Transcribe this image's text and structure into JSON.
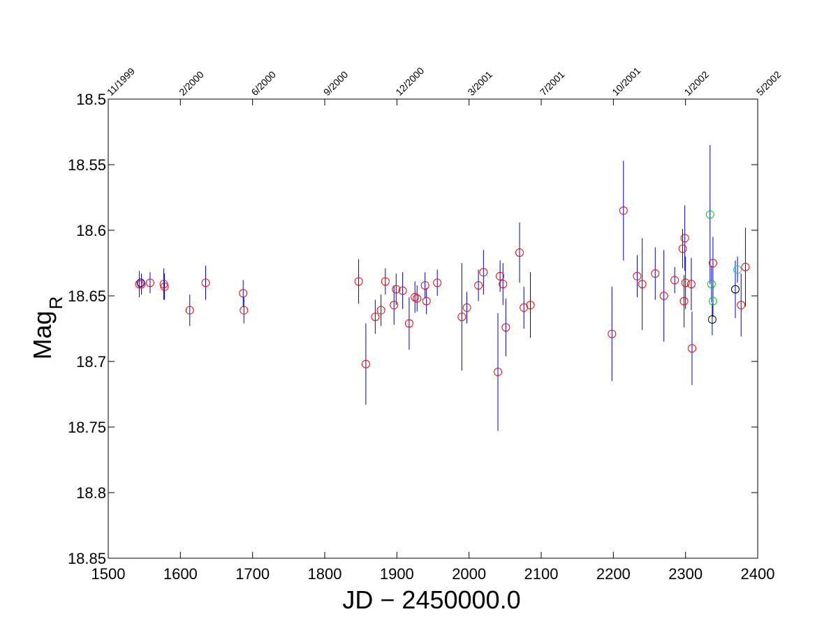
{
  "chart_data": {
    "type": "scatter",
    "title": "",
    "xlabel": "JD − 2450000.0",
    "ylabel": {
      "main": "Mag",
      "subscript": "R"
    },
    "xlim": [
      1500,
      2400
    ],
    "ylim": [
      18.5,
      18.85
    ],
    "y_inverted": true,
    "grid": false,
    "x_ticks": [
      1500,
      1600,
      1700,
      1800,
      1900,
      2000,
      2100,
      2200,
      2300,
      2400
    ],
    "x_tick_labels": [
      "1500",
      "1600",
      "1700",
      "1800",
      "1900",
      "2000",
      "2100",
      "2200",
      "2300",
      "2400"
    ],
    "y_ticks": [
      18.5,
      18.55,
      18.6,
      18.65,
      18.7,
      18.75,
      18.8,
      18.85
    ],
    "y_tick_labels": [
      "18.5",
      "18.55",
      "18.6",
      "18.65",
      "18.7",
      "18.75",
      "18.8",
      "18.85"
    ],
    "top_date_axis": [
      {
        "x": 1500,
        "label": "11/1999"
      },
      {
        "x": 1600,
        "label": "2/2000"
      },
      {
        "x": 1700,
        "label": "6/2000"
      },
      {
        "x": 1800,
        "label": "9/2000"
      },
      {
        "x": 1900,
        "label": "12/2000"
      },
      {
        "x": 2000,
        "label": "3/2001"
      },
      {
        "x": 2100,
        "label": "7/2001"
      },
      {
        "x": 2200,
        "label": "10/2001"
      },
      {
        "x": 2300,
        "label": "1/2002"
      },
      {
        "x": 2400,
        "label": "5/2002"
      }
    ],
    "errorbar_color": "#0000cc",
    "series": [
      {
        "color": "#ff0000",
        "points": [
          [
            1543,
            18.641,
            0.01
          ],
          [
            1546,
            18.641,
            0.008
          ],
          [
            1558,
            18.64,
            0.008
          ],
          [
            1577,
            18.641,
            0.012
          ],
          [
            1578,
            18.643,
            0.01
          ],
          [
            1613,
            18.661,
            0.012
          ],
          [
            1635,
            18.64,
            0.013
          ],
          [
            1687,
            18.648,
            0.01
          ],
          [
            1688,
            18.661,
            0.01
          ],
          [
            1847,
            18.639,
            0.017
          ],
          [
            1857,
            18.702,
            0.031
          ],
          [
            1870,
            18.666,
            0.013
          ],
          [
            1878,
            18.661,
            0.012
          ],
          [
            1884,
            18.639,
            0.01
          ],
          [
            1896,
            18.657,
            0.015
          ],
          [
            1899,
            18.645,
            0.012
          ],
          [
            1908,
            18.646,
            0.014
          ],
          [
            1917,
            18.671,
            0.02
          ],
          [
            1925,
            18.651,
            0.012
          ],
          [
            1928,
            18.652,
            0.01
          ],
          [
            1939,
            18.642,
            0.01
          ],
          [
            1941,
            18.654,
            0.01
          ],
          [
            1956,
            18.64,
            0.01
          ],
          [
            1990,
            18.666,
            0.041
          ],
          [
            1997,
            18.659,
            0.012
          ],
          [
            2013,
            18.642,
            0.012
          ],
          [
            2020,
            18.632,
            0.017
          ],
          [
            2040,
            18.708,
            0.045
          ],
          [
            2043,
            18.635,
            0.012
          ],
          [
            2047,
            18.641,
            0.016
          ],
          [
            2051,
            18.674,
            0.022
          ],
          [
            2070,
            18.617,
            0.023
          ],
          [
            2076,
            18.659,
            0.016
          ],
          [
            2085,
            18.657,
            0.025
          ],
          [
            2198,
            18.679,
            0.036
          ],
          [
            2214,
            18.585,
            0.038
          ],
          [
            2233,
            18.635,
            0.016
          ],
          [
            2240,
            18.641,
            0.035
          ],
          [
            2258,
            18.633,
            0.02
          ],
          [
            2270,
            18.65,
            0.035
          ],
          [
            2285,
            18.638,
            0.01
          ],
          [
            2296,
            18.614,
            0.015
          ],
          [
            2298,
            18.654,
            0.02
          ],
          [
            2299,
            18.606,
            0.025
          ],
          [
            2300,
            18.64,
            0.02
          ],
          [
            2308,
            18.641,
            0.02
          ],
          [
            2309,
            18.69,
            0.028
          ],
          [
            2338,
            18.625,
            0.02
          ],
          [
            2377,
            18.657,
            0.024
          ],
          [
            2383,
            18.628,
            0.03
          ]
        ]
      },
      {
        "color": "#0000cc",
        "points": [
          [
            1545,
            18.64,
            0.0
          ]
        ]
      },
      {
        "color": "#00cc00",
        "points": [
          [
            2334,
            18.588,
            0.053
          ],
          [
            2336,
            18.641,
            0.014
          ],
          [
            2338,
            18.654,
            0.012
          ]
        ]
      },
      {
        "color": "#000000",
        "points": [
          [
            2337,
            18.668,
            0.012
          ],
          [
            2369,
            18.645,
            0.022
          ]
        ]
      },
      {
        "color": "#00cccc",
        "points": [
          [
            2372,
            18.63,
            0.01
          ]
        ]
      }
    ]
  }
}
